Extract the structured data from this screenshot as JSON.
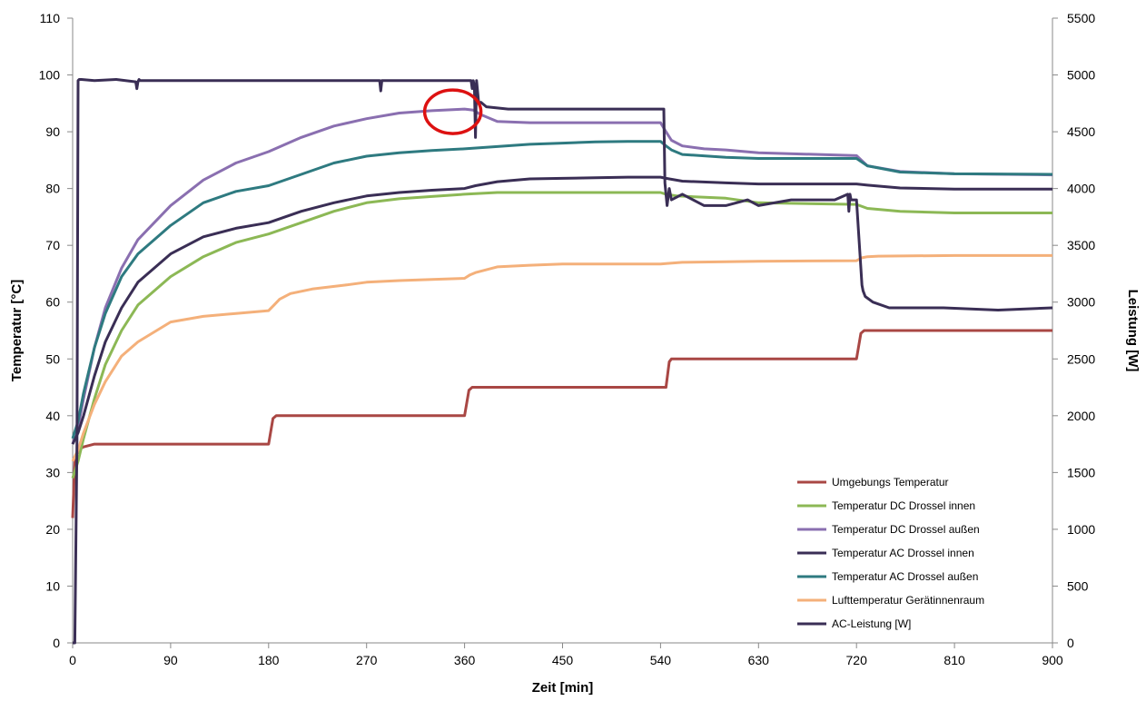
{
  "chart_data": {
    "type": "line",
    "xlabel": "Zeit [min]",
    "ylabel": "Temperatur [°C]",
    "y2label": "Leistung [W]",
    "xlim": [
      0,
      900
    ],
    "ylim": [
      0,
      110
    ],
    "y2lim": [
      0,
      5500
    ],
    "xticks": [
      0,
      90,
      180,
      270,
      360,
      450,
      540,
      630,
      720,
      810,
      900
    ],
    "yticks": [
      0,
      10,
      20,
      30,
      40,
      50,
      60,
      70,
      80,
      90,
      100,
      110
    ],
    "y2ticks": [
      0,
      500,
      1000,
      1500,
      2000,
      2500,
      3000,
      3500,
      4000,
      4500,
      5000,
      5500
    ],
    "grid": false,
    "legend_position": "bottom-right",
    "annotation": {
      "shape": "circle",
      "color": "#dd1111",
      "x": 345,
      "y": 94
    },
    "series": [
      {
        "name": "Umgebungs Temperatur",
        "color": "#a94744",
        "axis": "left",
        "x": [
          0,
          2,
          5,
          10,
          20,
          30,
          60,
          120,
          180,
          184,
          187,
          192,
          270,
          360,
          364,
          367,
          380,
          450,
          545,
          548,
          550,
          560,
          630,
          720,
          724,
          727,
          740,
          810,
          900
        ],
        "y": [
          22,
          32,
          34,
          34.5,
          35,
          35,
          35,
          35,
          35,
          39.5,
          40,
          40,
          40,
          40,
          44.5,
          45,
          45,
          45,
          45,
          49.5,
          50,
          50,
          50,
          50,
          54.5,
          55,
          55,
          55,
          55
        ]
      },
      {
        "name": "Temperatur DC Drossel innen",
        "color": "#8cb855",
        "axis": "left",
        "x": [
          0,
          5,
          10,
          20,
          30,
          45,
          60,
          90,
          120,
          150,
          180,
          210,
          240,
          270,
          300,
          330,
          360,
          390,
          420,
          450,
          480,
          510,
          540,
          545,
          555,
          600,
          630,
          720,
          730,
          760,
          810,
          900
        ],
        "y": [
          29,
          32,
          36,
          43,
          49,
          55,
          59.5,
          64.5,
          68,
          70.5,
          72,
          74,
          76,
          77.5,
          78.2,
          78.6,
          79,
          79.3,
          79.3,
          79.3,
          79.3,
          79.3,
          79.3,
          79,
          78.7,
          78.3,
          77.5,
          77.2,
          76.5,
          76,
          75.7,
          75.7
        ]
      },
      {
        "name": "Temperatur DC Drossel außen",
        "color": "#8a6fb0",
        "axis": "left",
        "x": [
          0,
          5,
          10,
          20,
          30,
          45,
          60,
          90,
          120,
          150,
          180,
          210,
          240,
          270,
          300,
          330,
          360,
          368,
          375,
          390,
          420,
          450,
          480,
          510,
          540,
          545,
          550,
          560,
          580,
          600,
          630,
          720,
          730,
          760,
          810,
          900
        ],
        "y": [
          35,
          38,
          43,
          52,
          59,
          66,
          71,
          77,
          81.5,
          84.5,
          86.5,
          89,
          91,
          92.3,
          93.3,
          93.7,
          94,
          93.8,
          93,
          91.8,
          91.6,
          91.6,
          91.6,
          91.6,
          91.6,
          90,
          88.5,
          87.5,
          87,
          86.8,
          86.3,
          85.8,
          84,
          83,
          82.6,
          82.4
        ]
      },
      {
        "name": "Temperatur AC Drossel innen",
        "color": "#3a2e55",
        "axis": "left",
        "x": [
          0,
          5,
          10,
          20,
          30,
          45,
          60,
          90,
          120,
          150,
          180,
          210,
          240,
          270,
          300,
          330,
          360,
          370,
          390,
          420,
          450,
          480,
          510,
          540,
          545,
          560,
          600,
          630,
          720,
          730,
          760,
          810,
          900
        ],
        "y": [
          35,
          37,
          40,
          47,
          53,
          59,
          63.5,
          68.5,
          71.5,
          73,
          74,
          76,
          77.5,
          78.7,
          79.3,
          79.7,
          80,
          80.5,
          81.2,
          81.7,
          81.8,
          81.9,
          82,
          82,
          81.8,
          81.3,
          81,
          80.8,
          80.8,
          80.6,
          80.1,
          79.9,
          79.9
        ]
      },
      {
        "name": "Temperatur AC Drossel außen",
        "color": "#2e7a80",
        "axis": "left",
        "x": [
          0,
          5,
          10,
          20,
          30,
          45,
          60,
          90,
          120,
          150,
          180,
          210,
          240,
          270,
          300,
          330,
          360,
          390,
          420,
          450,
          480,
          510,
          540,
          545,
          550,
          560,
          600,
          630,
          720,
          730,
          760,
          810,
          900
        ],
        "y": [
          36,
          39,
          44,
          52,
          58,
          64.5,
          68.5,
          73.5,
          77.5,
          79.5,
          80.5,
          82.5,
          84.5,
          85.7,
          86.3,
          86.7,
          87,
          87.4,
          87.8,
          88,
          88.2,
          88.3,
          88.3,
          87.5,
          86.8,
          86,
          85.5,
          85.3,
          85.3,
          84,
          82.9,
          82.6,
          82.5
        ]
      },
      {
        "name": "Lufttemperatur Gerätinnenraum",
        "color": "#f4b07a",
        "axis": "left",
        "x": [
          0,
          5,
          10,
          20,
          30,
          45,
          60,
          90,
          120,
          150,
          180,
          185,
          190,
          200,
          220,
          250,
          270,
          300,
          330,
          360,
          365,
          370,
          380,
          390,
          420,
          450,
          480,
          510,
          540,
          545,
          560,
          600,
          630,
          720,
          725,
          730,
          740,
          810,
          900
        ],
        "y": [
          32,
          34,
          37,
          42,
          46,
          50.5,
          53,
          56.5,
          57.5,
          58,
          58.5,
          59.5,
          60.5,
          61.5,
          62.3,
          63,
          63.5,
          63.8,
          64,
          64.2,
          64.8,
          65.2,
          65.7,
          66.2,
          66.5,
          66.7,
          66.7,
          66.7,
          66.7,
          66.8,
          67,
          67.1,
          67.2,
          67.3,
          67.8,
          68,
          68.1,
          68.2,
          68.2
        ]
      },
      {
        "name": "AC-Leistung [W]",
        "color": "#3a2e55",
        "axis": "right",
        "x": [
          0,
          2,
          4,
          5,
          6,
          8,
          20,
          40,
          58,
          59,
          60,
          61,
          62,
          100,
          180,
          270,
          282,
          283,
          284,
          285,
          286,
          300,
          360,
          366,
          367,
          368,
          369,
          370,
          371,
          373,
          375,
          380,
          400,
          450,
          500,
          540,
          543,
          544,
          545,
          546,
          548,
          550,
          560,
          580,
          600,
          620,
          630,
          660,
          700,
          712,
          713,
          714,
          715,
          720,
          722,
          724,
          725,
          726,
          728,
          735,
          750,
          800,
          850,
          900
        ],
        "y": [
          0,
          0,
          1800,
          4950,
          4960,
          4960,
          4950,
          4960,
          4940,
          4880,
          4940,
          4960,
          4950,
          4950,
          4950,
          4950,
          4950,
          4860,
          4950,
          4950,
          4950,
          4950,
          4950,
          4950,
          4880,
          4950,
          4900,
          4450,
          4950,
          4750,
          4760,
          4720,
          4700,
          4700,
          4700,
          4700,
          4700,
          4050,
          3950,
          3850,
          4000,
          3900,
          3950,
          3850,
          3850,
          3900,
          3850,
          3900,
          3900,
          3950,
          3800,
          3950,
          3900,
          3900,
          3600,
          3300,
          3150,
          3100,
          3050,
          3000,
          2950,
          2950,
          2930,
          2950
        ]
      }
    ]
  }
}
